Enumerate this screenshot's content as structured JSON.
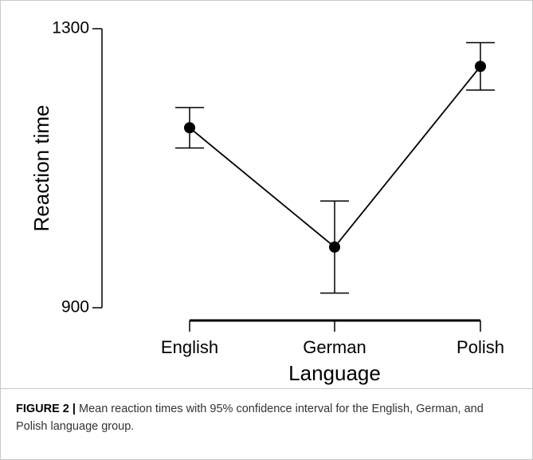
{
  "chart_data": {
    "type": "line",
    "x_label": "Language",
    "y_label": "Reaction time",
    "categories": [
      "English",
      "German",
      "Polish"
    ],
    "values": [
      1158,
      987,
      1246
    ],
    "errors": [
      29,
      66,
      34
    ],
    "color": "#000000",
    "ylim": [
      900,
      1300
    ],
    "yticks": [
      900,
      1300
    ],
    "grid": false
  },
  "caption": {
    "label": "FIGURE 2 |",
    "text": "Mean reaction times with 95% confidence interval for the English, German, and Polish language group."
  }
}
